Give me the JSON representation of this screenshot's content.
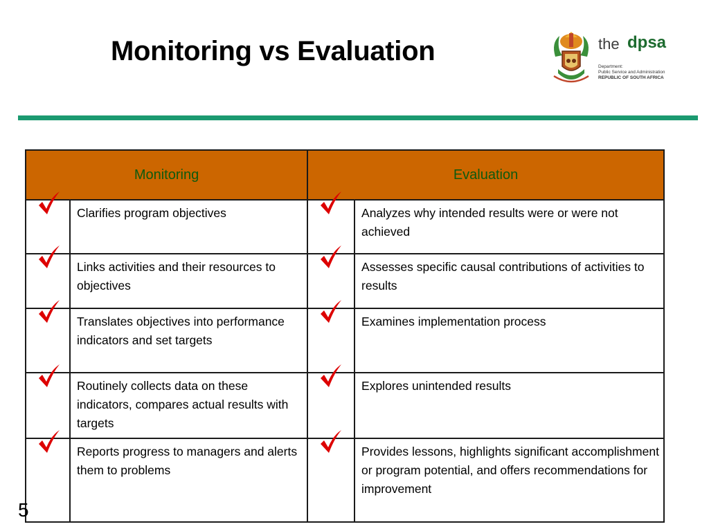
{
  "slide": {
    "title": "Monitoring vs Evaluation",
    "page_number": "5"
  },
  "logo": {
    "the": "the",
    "dpsa": "dpsa",
    "line1": "Department:",
    "line2": "Public Service and Administration",
    "line3": "REPUBLIC OF SOUTH AFRICA"
  },
  "table": {
    "headers": {
      "monitoring": "Monitoring",
      "evaluation": "Evaluation"
    },
    "rows": [
      {
        "monitoring": "Clarifies program objectives",
        "evaluation": "Analyzes why intended results were or were not achieved"
      },
      {
        "monitoring": "Links activities and their resources to objectives",
        "evaluation": "Assesses specific causal contributions of activities to results"
      },
      {
        "monitoring": "Translates objectives into performance indicators and set targets",
        "evaluation": "Examines implementation process"
      },
      {
        "monitoring": "Routinely collects data on these indicators, compares actual results with targets",
        "evaluation": "Explores unintended results"
      },
      {
        "monitoring": "Reports progress to managers and alerts them to problems",
        "evaluation": "Provides lessons, highlights significant accomplishment or program potential, and offers recommendations for improvement"
      }
    ]
  },
  "colors": {
    "header_bg": "#cc6600",
    "header_text": "#0e5a0e",
    "checkmark": "#dd0000",
    "rule": "#1b9a70",
    "logo_green": "#1d6b2f"
  },
  "icons": {
    "row_marker": "checkmark-icon",
    "logo": "coat-of-arms-icon"
  }
}
